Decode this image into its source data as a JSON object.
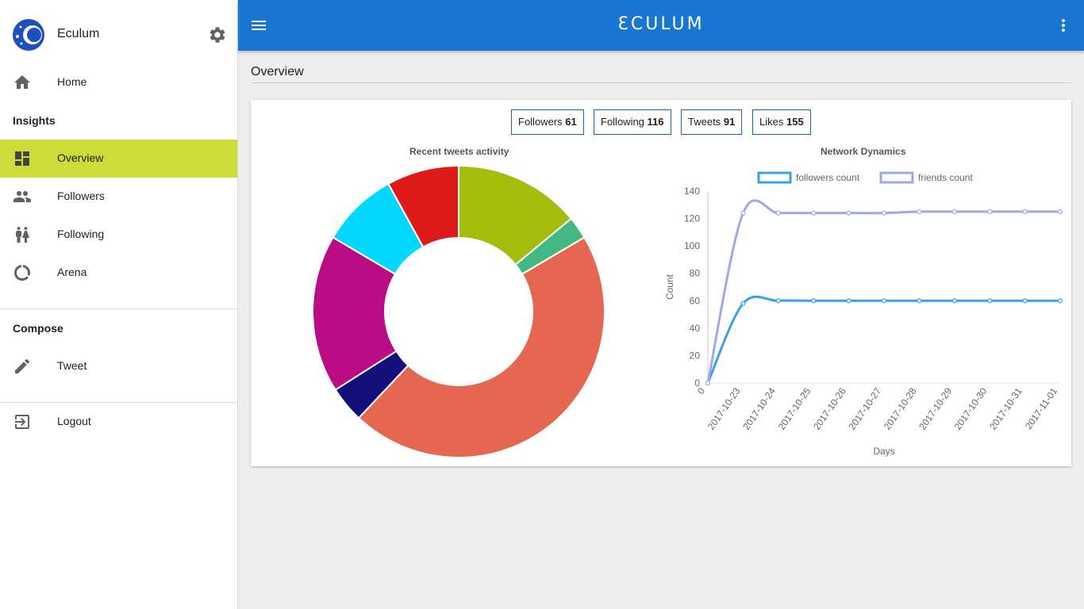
{
  "app": {
    "name": "Eculum",
    "brand": "ƐCULUM"
  },
  "sidebar": {
    "home": "Home",
    "insights_title": "Insights",
    "insights_items": [
      "Overview",
      "Followers",
      "Following",
      "Arena"
    ],
    "compose_title": "Compose",
    "tweet": "Tweet",
    "logout": "Logout"
  },
  "page": {
    "title": "Overview"
  },
  "stats": [
    {
      "label": "Followers",
      "value": "61"
    },
    {
      "label": "Following",
      "value": "116"
    },
    {
      "label": "Tweets",
      "value": "91"
    },
    {
      "label": "Likes",
      "value": "155"
    }
  ],
  "colors": {
    "accent": "#1976d2",
    "active": "#cddc39",
    "followers_line": "#36a2eb",
    "friends_line": "#9fa8e8"
  },
  "chart_data": [
    {
      "type": "pie",
      "title": "Recent tweets activity",
      "slices": [
        {
          "value": 14,
          "color": "#a4bc0c"
        },
        {
          "value": 2.5,
          "color": "#43b883"
        },
        {
          "value": 45.5,
          "color": "#e56651"
        },
        {
          "value": 4,
          "color": "#140f7a"
        },
        {
          "value": 17.5,
          "color": "#b90c85"
        },
        {
          "value": 8.5,
          "color": "#00d8ff"
        },
        {
          "value": 8,
          "color": "#de1a1a"
        }
      ]
    },
    {
      "type": "line",
      "title": "Network Dynamics",
      "xlabel": "Days",
      "ylabel": "Count",
      "categories": [
        "0",
        "2017-10-23",
        "2017-10-24",
        "2017-10-25",
        "2017-10-26",
        "2017-10-27",
        "2017-10-28",
        "2017-10-29",
        "2017-10-30",
        "2017-10-31",
        "2017-11-01"
      ],
      "ylim": [
        0,
        140
      ],
      "yticks": [
        "0",
        "20",
        "40",
        "60",
        "80",
        "100",
        "120",
        "140"
      ],
      "legend_position": "top",
      "series": [
        {
          "name": "followers count",
          "color": "#36a2eb",
          "values": [
            0,
            58,
            60,
            60,
            60,
            60,
            60,
            60,
            60,
            60,
            60
          ]
        },
        {
          "name": "friends count",
          "color": "#9fa8e8",
          "values": [
            0,
            124,
            124,
            124,
            124,
            124,
            125,
            125,
            125,
            125,
            125
          ]
        }
      ]
    }
  ]
}
